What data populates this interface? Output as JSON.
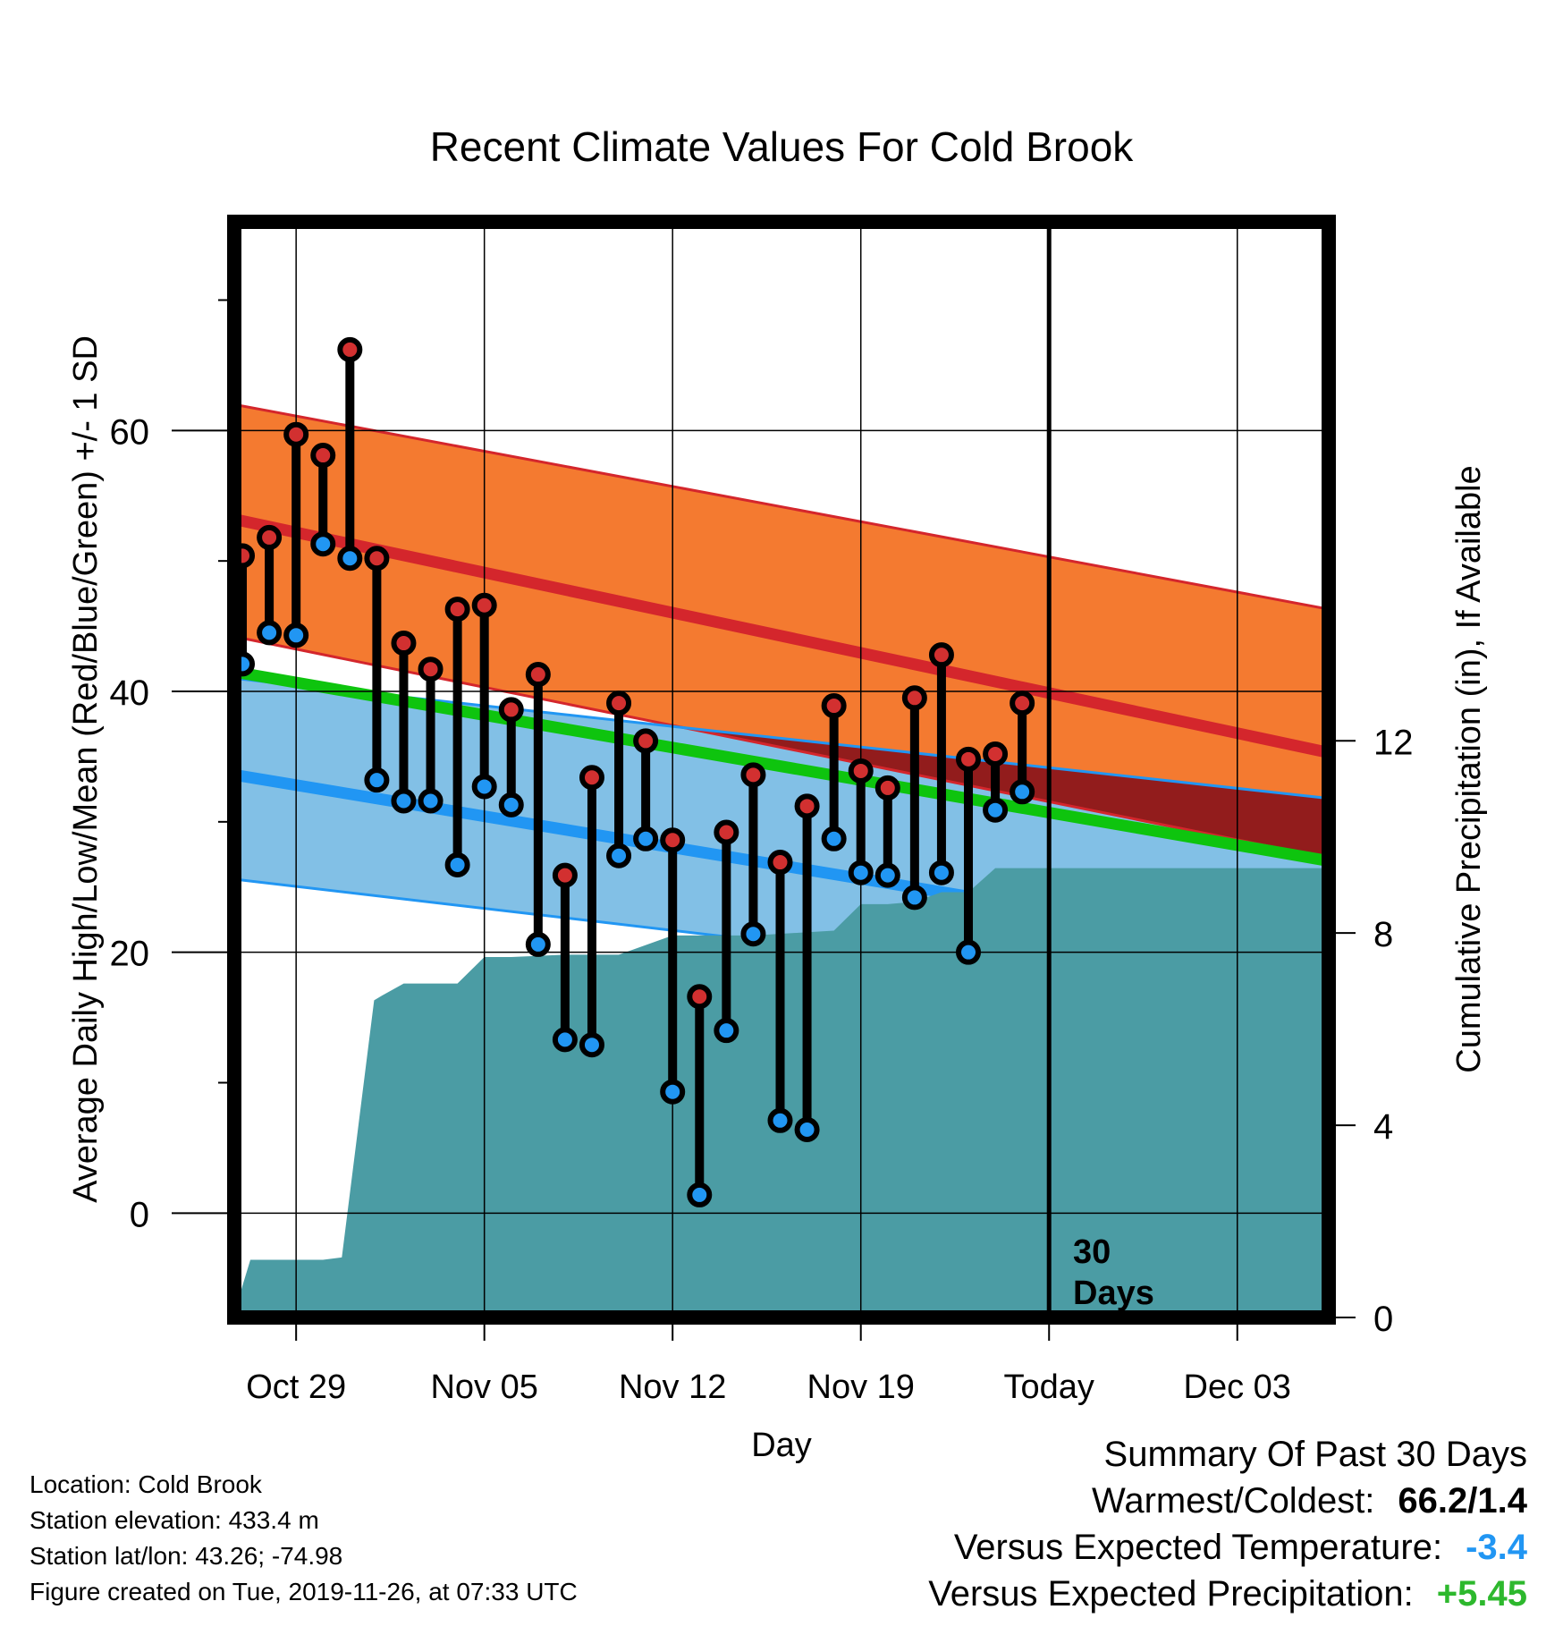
{
  "chart_data": {
    "type": "line",
    "title": "Recent Climate Values For Cold Brook",
    "xlabel": "Day",
    "ylabel_left": "Average Daily High/Low/Mean (Red/Blue/Green) +/- 1 SD",
    "ylabel_right": "Cumulative Precipitation (in), If Available",
    "x_tick_labels": [
      "Oct 29",
      "Nov 05",
      "Nov 12",
      "Nov 19",
      "Today",
      "Dec 03"
    ],
    "x_tick_days": [
      2,
      9,
      16,
      23,
      30,
      37
    ],
    "xlim": [
      -0.3,
      40.4
    ],
    "ylim_left": [
      -8,
      76
    ],
    "ylim_right": [
      0,
      22.8
    ],
    "left_ticks": [
      0,
      20,
      40,
      60
    ],
    "right_ticks": [
      0,
      4,
      8,
      12
    ],
    "today_day": 30,
    "today_label_line1": "30",
    "today_label_line2": "Days",
    "normal_high": {
      "start": [
        -0.3,
        53.2
      ],
      "end": [
        40.4,
        35.3
      ]
    },
    "normal_high_band": {
      "upper_start": 62,
      "upper_end": 46.3,
      "lower_start": 44.2,
      "lower_end": 27.2
    },
    "normal_low": {
      "start": [
        -0.3,
        33.6
      ],
      "end": [
        40.4,
        19.7
      ]
    },
    "normal_low_band": {
      "upper_start": 41,
      "upper_end": 31.8,
      "lower_start": 25.6,
      "lower_end": 15.8
    },
    "normal_mean": {
      "start": [
        -0.3,
        41.5
      ],
      "end": [
        40.4,
        27
      ]
    },
    "days": [
      0,
      1,
      2,
      3,
      4,
      5,
      6,
      7,
      8,
      9,
      10,
      11,
      12,
      13,
      14,
      15,
      16,
      17,
      18,
      19,
      20,
      21,
      22,
      23,
      24,
      25,
      26,
      27,
      28,
      29
    ],
    "highs": [
      50.4,
      51.8,
      59.7,
      58.1,
      66.2,
      50.2,
      43.7,
      41.7,
      46.3,
      46.6,
      38.6,
      41.3,
      25.9,
      33.4,
      39.1,
      36.2,
      28.6,
      16.6,
      29.2,
      33.6,
      26.9,
      31.2,
      38.9,
      33.9,
      32.6,
      39.5,
      42.8,
      34.8,
      35.2,
      39.1
    ],
    "lows": [
      42.1,
      44.5,
      44.3,
      51.3,
      50.2,
      33.2,
      31.6,
      31.6,
      26.7,
      32.7,
      31.3,
      20.6,
      13.3,
      12.9,
      27.4,
      28.7,
      9.3,
      1.4,
      14.0,
      21.4,
      7.1,
      6.4,
      28.7,
      26.1,
      25.9,
      24.2,
      26.1,
      20.0,
      30.9,
      32.3
    ],
    "precip_cumulative": {
      "days": [
        -0.3,
        0.3,
        3.0,
        3.7,
        4.9,
        5.2,
        6.0,
        8.0,
        9.0,
        10.0,
        12.0,
        14.0,
        16.0,
        17.0,
        19.0,
        22.0,
        23.0,
        24.0,
        25.0,
        26.0,
        27.0,
        28.0,
        40.4
      ],
      "values": [
        0.1,
        1.2,
        1.2,
        1.25,
        6.6,
        6.7,
        6.95,
        6.95,
        7.5,
        7.5,
        7.55,
        7.55,
        7.95,
        7.95,
        7.95,
        8.05,
        8.6,
        8.6,
        8.65,
        8.85,
        8.85,
        9.35,
        9.35
      ]
    }
  },
  "info": {
    "location": "Location: Cold Brook",
    "elevation": "Station elevation: 433.4 m",
    "latlon": "Station lat/lon: 43.26; -74.98",
    "created": "Figure created on Tue, 2019-11-26, at 07:33 UTC"
  },
  "summary": {
    "title": "Summary Of Past 30 Days",
    "warm_cold_label": "Warmest/Coldest:",
    "warm_cold_value": "66.2/1.4",
    "temp_label": "Versus Expected Temperature:",
    "temp_value": "-3.4",
    "precip_label": "Versus Expected Precipitation:",
    "precip_value": "+5.45"
  },
  "colors": {
    "high_band": "#f47a30",
    "high_line": "#d4262c",
    "overlap": "#921c1c",
    "low_band": "#82c0e6",
    "low_line": "#2196f3",
    "mean_line": "#0ec40e",
    "precip": "#4b9ca4",
    "high_dot": "#d23030",
    "low_dot": "#2196f3",
    "temp_value": "#2196f3",
    "precip_value": "#2db82d"
  }
}
